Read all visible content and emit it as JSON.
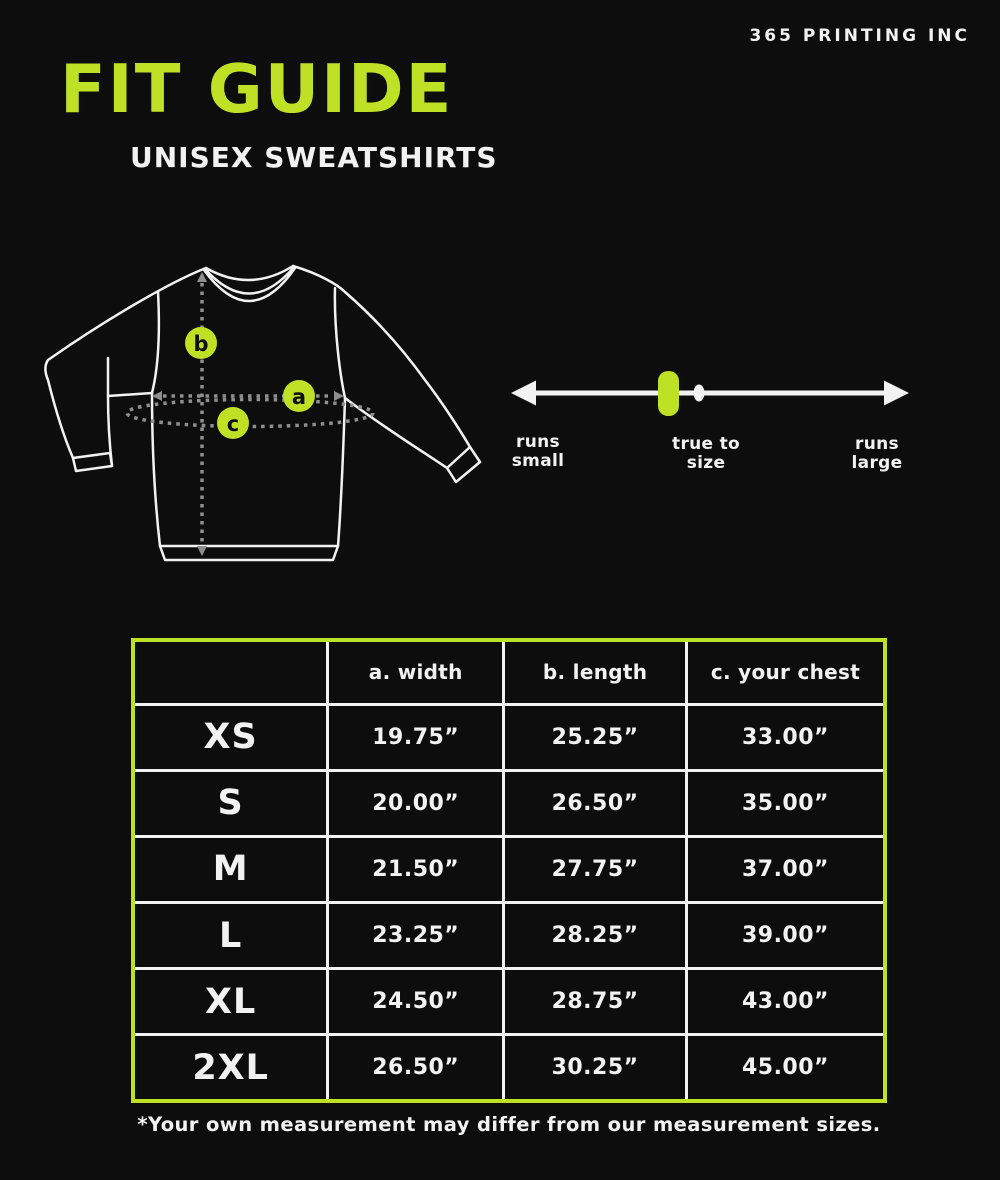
{
  "brand": "365 PRINTING INC",
  "title": "FIT GUIDE",
  "subtitle": "UNISEX SWEATSHIRTS",
  "colors": {
    "background": "#0d0d0d",
    "accent": "#bfe125",
    "text": "#f2f2f2",
    "guide_lines": "#8f8f8f"
  },
  "diagram": {
    "marker_a": "a",
    "marker_b": "b",
    "marker_c": "c"
  },
  "fit_scale": {
    "runs_small": "runs\nsmall",
    "true_to_size": "true to\nsize",
    "runs_large": "runs\nlarge",
    "selected": "true to size"
  },
  "table": {
    "headers": [
      "",
      "a. width",
      "b. length",
      "c. your chest"
    ],
    "rows": [
      {
        "size": "XS",
        "width": "19.75”",
        "length": "25.25”",
        "chest": "33.00”"
      },
      {
        "size": "S",
        "width": "20.00”",
        "length": "26.50”",
        "chest": "35.00”"
      },
      {
        "size": "M",
        "width": "21.50”",
        "length": "27.75”",
        "chest": "37.00”"
      },
      {
        "size": "L",
        "width": "23.25”",
        "length": "28.25”",
        "chest": "39.00”"
      },
      {
        "size": "XL",
        "width": "24.50”",
        "length": "28.75”",
        "chest": "43.00”"
      },
      {
        "size": "2XL",
        "width": "26.50”",
        "length": "30.25”",
        "chest": "45.00”"
      }
    ]
  },
  "footnote": "*Your own measurement may differ from our measurement sizes."
}
